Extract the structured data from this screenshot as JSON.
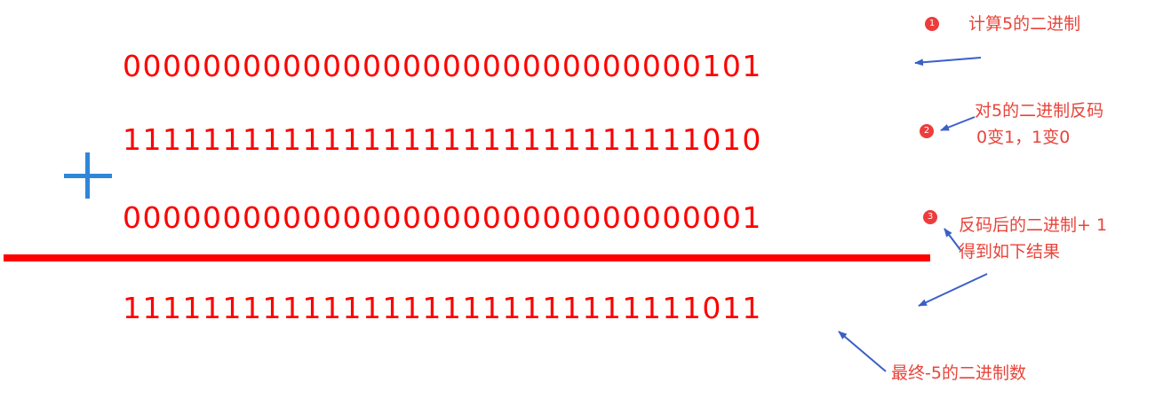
{
  "rows": {
    "binary_5": "00000000000000000000000000000101",
    "inverted": "11111111111111111111111111111010",
    "plus_one": "00000000000000000000000000000001",
    "result": "11111111111111111111111111111011"
  },
  "steps": [
    {
      "badge": "1",
      "lines": [
        "计算5的二进制"
      ]
    },
    {
      "badge": "2",
      "lines": [
        "对5的二进制反码",
        "0变1，1变0"
      ]
    },
    {
      "badge": "3",
      "lines": [
        "反码后的二进制+ 1",
        "得到如下结果"
      ]
    }
  ],
  "final_note": "最终-5的二进制数",
  "colors": {
    "digits": "#ff0000",
    "plus_sign": "#2f86d8",
    "annotation": "#e8443a",
    "arrow": "#3a5fc8"
  },
  "icons": {
    "operator": "plus-icon",
    "step_markers": "numbered-circle-icon",
    "pointers": "arrow-icon"
  }
}
